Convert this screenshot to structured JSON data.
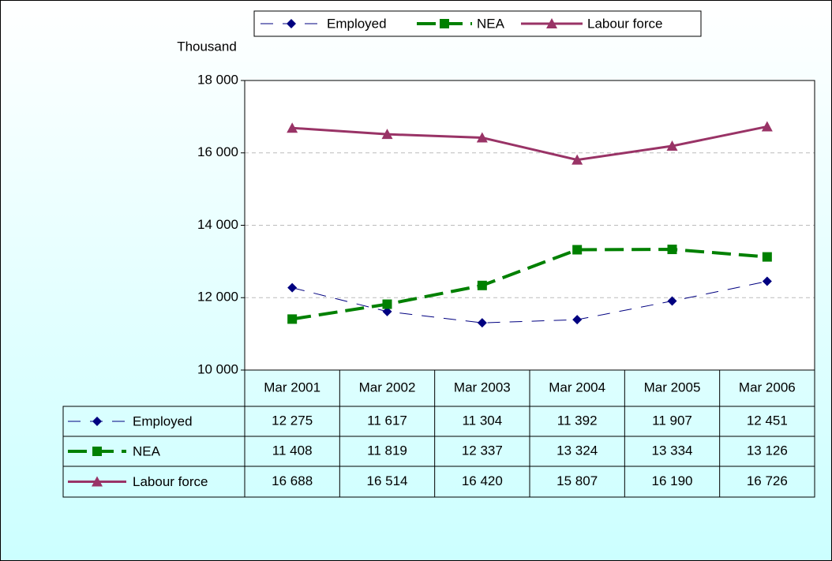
{
  "chart_data": {
    "type": "line",
    "y_axis_label": "Thousand",
    "categories": [
      "Mar 2001",
      "Mar 2002",
      "Mar 2003",
      "Mar 2004",
      "Mar 2005",
      "Mar 2006"
    ],
    "ylim": [
      10000,
      18000
    ],
    "yticks": [
      {
        "value": 10000,
        "label": "10 000"
      },
      {
        "value": 12000,
        "label": "12 000"
      },
      {
        "value": 14000,
        "label": "14 000"
      },
      {
        "value": 16000,
        "label": "16 000"
      },
      {
        "value": 18000,
        "label": "18 000"
      }
    ],
    "grid": true,
    "legend": "top",
    "series": [
      {
        "name": "Employed",
        "color": "#000080",
        "line_style": "dashed",
        "line_width": 1,
        "marker": "diamond",
        "values": [
          12275,
          11617,
          11304,
          11392,
          11907,
          12451
        ],
        "value_labels": [
          "12 275",
          "11 617",
          "11 304",
          "11 392",
          "11 907",
          "12 451"
        ]
      },
      {
        "name": "NEA",
        "color": "#008000",
        "line_style": "dashed",
        "line_width": 4,
        "marker": "square",
        "values": [
          11408,
          11819,
          12337,
          13324,
          13334,
          13126
        ],
        "value_labels": [
          "11 408",
          "11 819",
          "12 337",
          "13 324",
          "13 334",
          "13 126"
        ]
      },
      {
        "name": "Labour force",
        "color": "#993366",
        "line_style": "solid",
        "line_width": 3,
        "marker": "triangle",
        "values": [
          16688,
          16514,
          16420,
          15807,
          16190,
          16726
        ],
        "value_labels": [
          "16 688",
          "16 514",
          "16 420",
          "15 807",
          "16 190",
          "16 726"
        ]
      }
    ]
  }
}
